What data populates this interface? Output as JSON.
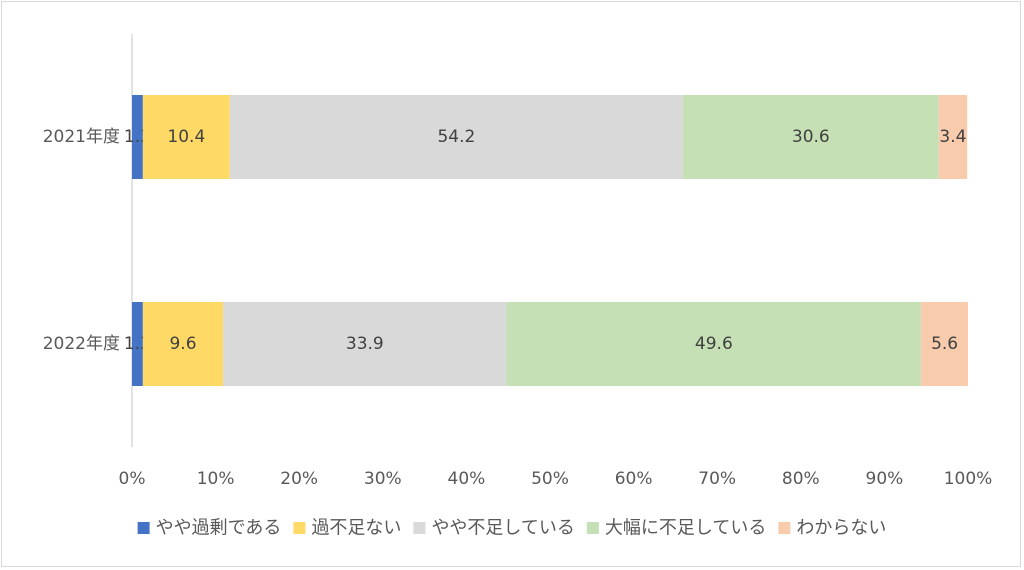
{
  "chart_data": {
    "type": "bar",
    "orientation": "horizontal",
    "stacked": "percent",
    "categories": [
      "2021年度",
      "2022年度"
    ],
    "series": [
      {
        "name": "やや過剰である",
        "color": "#4472c4",
        "values": [
          1.3,
          1.3
        ]
      },
      {
        "name": "過不足ない",
        "color": "#ffd966",
        "values": [
          10.4,
          9.6
        ]
      },
      {
        "name": "やや不足している",
        "color": "#d9d9d9",
        "values": [
          54.2,
          33.9
        ]
      },
      {
        "name": "大幅に不足している",
        "color": "#c5e0b4",
        "values": [
          30.6,
          49.6
        ]
      },
      {
        "name": "わからない",
        "color": "#f8cbad",
        "values": [
          3.4,
          5.6
        ]
      }
    ],
    "xticks": [
      "0%",
      "10%",
      "20%",
      "30%",
      "40%",
      "50%",
      "60%",
      "70%",
      "80%",
      "90%",
      "100%"
    ],
    "xlim": [
      0,
      100
    ],
    "grid": false,
    "legend": "bottom"
  }
}
